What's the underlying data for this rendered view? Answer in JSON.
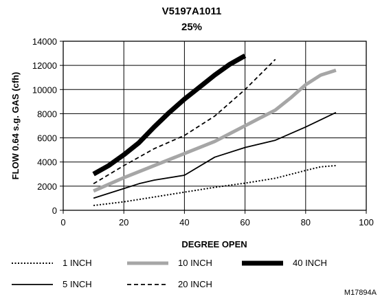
{
  "chart_data": {
    "type": "line",
    "title": "V5197A1011",
    "subtitle": "25%",
    "xlabel": "DEGREE OPEN",
    "ylabel": "FLOW 0.64 s.g. GAS (cfh)",
    "xlim": [
      0,
      100
    ],
    "ylim": [
      0,
      14000
    ],
    "x_ticks": [
      0,
      20,
      40,
      60,
      80,
      100
    ],
    "y_ticks": [
      0,
      2000,
      4000,
      6000,
      8000,
      10000,
      12000,
      14000
    ],
    "grid": true,
    "legend_position": "bottom",
    "series": [
      {
        "name": "1 INCH",
        "style": "dotted",
        "color": "#000000",
        "x": [
          10,
          20,
          30,
          40,
          50,
          60,
          70,
          80,
          85,
          90
        ],
        "y": [
          400,
          700,
          1100,
          1500,
          1900,
          2250,
          2650,
          3300,
          3600,
          3700
        ]
      },
      {
        "name": "5 INCH",
        "style": "solid-thin",
        "color": "#000000",
        "x": [
          10,
          15,
          20,
          25,
          30,
          40,
          50,
          60,
          70,
          80,
          90
        ],
        "y": [
          1000,
          1400,
          1800,
          2200,
          2500,
          2900,
          4400,
          5200,
          5800,
          6900,
          8100
        ]
      },
      {
        "name": "10 INCH",
        "style": "solid-thick",
        "color": "#a6a6a6",
        "x": [
          10,
          20,
          30,
          40,
          50,
          60,
          70,
          75,
          80,
          85,
          90
        ],
        "y": [
          1600,
          2700,
          3700,
          4700,
          5700,
          7000,
          8300,
          9300,
          10400,
          11200,
          11600
        ]
      },
      {
        "name": "20 INCH",
        "style": "dashed",
        "color": "#000000",
        "x": [
          10,
          20,
          30,
          40,
          50,
          60,
          70
        ],
        "y": [
          2200,
          3700,
          5100,
          6200,
          7800,
          10000,
          12500
        ]
      },
      {
        "name": "40 INCH",
        "style": "solid-heavy",
        "color": "#000000",
        "x": [
          10,
          15,
          20,
          25,
          30,
          35,
          40,
          45,
          50,
          55,
          60
        ],
        "y": [
          3000,
          3700,
          4600,
          5600,
          6900,
          8100,
          9200,
          10200,
          11200,
          12100,
          12800
        ]
      }
    ],
    "annotation": "M17894A"
  }
}
